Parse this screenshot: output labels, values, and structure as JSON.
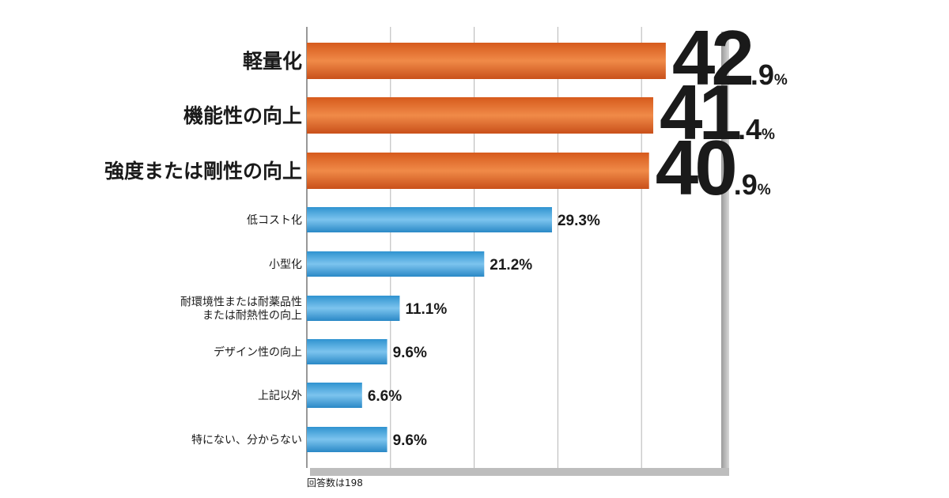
{
  "chart_data": {
    "type": "bar",
    "orientation": "horizontal",
    "categories": [
      "軽量化",
      "機能性の向上",
      "強度または剛性の向上",
      "低コスト化",
      "小型化",
      "耐環境性または耐薬品性\nまたは耐熱性の向上",
      "デザイン性の向上",
      "上記以外",
      "特にない、分からない"
    ],
    "values": [
      42.9,
      41.4,
      40.9,
      29.3,
      21.2,
      11.1,
      9.6,
      6.6,
      9.6
    ],
    "value_labels": [
      "42.9%",
      "41.4%",
      "40.9%",
      "29.3%",
      "21.2%",
      "11.1%",
      "9.6%",
      "6.6%",
      "9.6%"
    ],
    "highlighted_count": 3,
    "xlim": [
      0,
      50
    ],
    "grid": true,
    "legend": "none",
    "colors": {
      "highlight": "#e8732c",
      "normal": "#4ba6dc"
    },
    "footnote": "回答数は198"
  }
}
